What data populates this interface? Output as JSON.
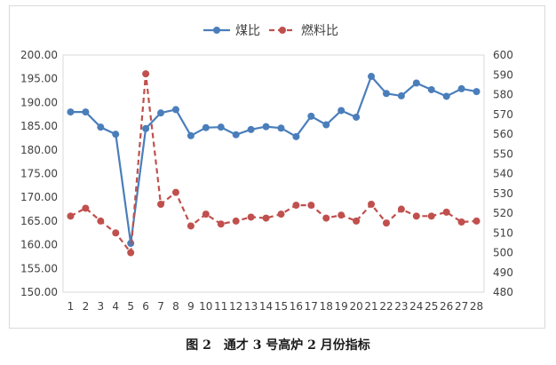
{
  "caption": "图 2　通才 3 号高炉 2 月份指标",
  "chart_data": {
    "type": "line",
    "title": "",
    "xlabel": "",
    "ylabel": "",
    "categories": [
      "1",
      "2",
      "3",
      "4",
      "5",
      "6",
      "7",
      "8",
      "9",
      "10",
      "11",
      "12",
      "13",
      "14",
      "15",
      "16",
      "17",
      "18",
      "19",
      "20",
      "21",
      "22",
      "23",
      "24",
      "25",
      "26",
      "27",
      "28"
    ],
    "y_left": {
      "min": 150,
      "max": 200,
      "step": 5,
      "tick_labels": [
        "150.00",
        "155.00",
        "160.00",
        "165.00",
        "170.00",
        "175.00",
        "180.00",
        "185.00",
        "190.00",
        "195.00",
        "200.00"
      ]
    },
    "y_right": {
      "min": 480,
      "max": 600,
      "step": 10,
      "tick_labels": [
        "480",
        "490",
        "500",
        "510",
        "520",
        "530",
        "540",
        "550",
        "560",
        "570",
        "580",
        "590",
        "600"
      ]
    },
    "legend": {
      "placement": "top-center"
    },
    "grid": {
      "horizontal": false,
      "vertical": false
    },
    "series": [
      {
        "name": "煤比",
        "axis": "left",
        "color": "#4a7ebb",
        "style": "solid",
        "marker": "circle",
        "values": [
          188.0,
          188.0,
          184.8,
          183.3,
          160.3,
          184.5,
          187.8,
          188.5,
          183.0,
          184.7,
          184.8,
          183.2,
          184.3,
          184.9,
          184.6,
          182.8,
          187.1,
          185.3,
          188.3,
          186.9,
          195.5,
          191.9,
          191.4,
          194.1,
          192.7,
          191.3,
          192.9,
          192.3
        ]
      },
      {
        "name": "燃料比",
        "axis": "right",
        "color": "#c0504d",
        "style": "dashed",
        "marker": "circle",
        "values": [
          518.5,
          522.5,
          516.0,
          510.0,
          500.0,
          590.5,
          524.5,
          530.5,
          513.5,
          519.5,
          514.5,
          516.0,
          518.0,
          517.5,
          519.5,
          524.0,
          524.0,
          517.5,
          519.0,
          516.0,
          524.5,
          515.0,
          522.0,
          518.5,
          518.5,
          520.5,
          515.5,
          516.0
        ]
      }
    ]
  }
}
